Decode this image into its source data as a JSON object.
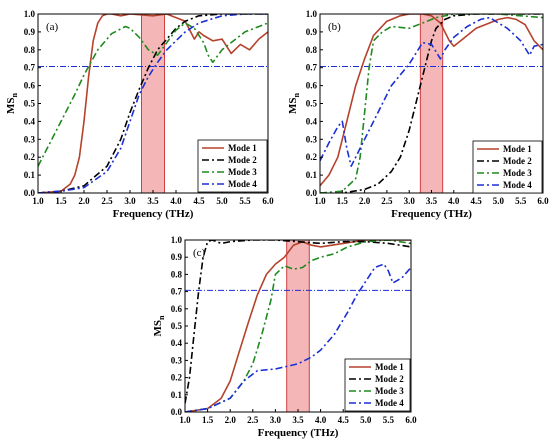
{
  "figure": {
    "panels": [
      {
        "tag": "(a)",
        "xlabel": "Frequency (THz)",
        "ylabel_main": "MS",
        "ylabel_sub": "n",
        "legend": [
          "Mode 1",
          "Mode 2",
          "Mode 3",
          "Mode 4"
        ]
      },
      {
        "tag": "(b)",
        "xlabel": "Frequency (THz)",
        "ylabel_main": "MS",
        "ylabel_sub": "n",
        "legend": [
          "Mode 1",
          "Mode 2",
          "Mode 3",
          "Mode 4"
        ]
      },
      {
        "tag": "(c)",
        "xlabel": "Frequency (THz)",
        "ylabel_main": "MS",
        "ylabel_sub": "n",
        "legend": [
          "Mode 1",
          "Mode 2",
          "Mode 3",
          "Mode 4"
        ]
      }
    ]
  },
  "colors": {
    "mode1": "#b5422c",
    "mode2": "#000000",
    "mode3": "#1f8a1f",
    "mode4": "#1b2fd6",
    "band_fill": "#f4b6b6",
    "band_stroke": "#d04040",
    "threshold": "#1b2fd6"
  },
  "chart_data": [
    {
      "type": "line",
      "title": "(a)",
      "xlabel": "Frequency (THz)",
      "ylabel": "MSn",
      "xlim": [
        1.0,
        6.0
      ],
      "ylim": [
        0.0,
        1.0
      ],
      "xticks": [
        "1.0",
        "1.5",
        "2.0",
        "2.5",
        "3.0",
        "3.5",
        "4.0",
        "4.5",
        "5.0",
        "5.5",
        "6.0"
      ],
      "yticks": [
        "0.0",
        "0.1",
        "0.2",
        "0.3",
        "0.4",
        "0.5",
        "0.6",
        "0.7",
        "0.8",
        "0.9",
        "1.0"
      ],
      "band": [
        3.25,
        3.75
      ],
      "threshold": 0.707,
      "legend_position": "bottom-right",
      "series": [
        {
          "name": "Mode 1",
          "style": "solid",
          "color_key": "mode1",
          "x": [
            1.0,
            1.5,
            1.7,
            1.8,
            1.9,
            2.0,
            2.1,
            2.2,
            2.3,
            2.4,
            2.5,
            2.6,
            2.8,
            3.0,
            3.5,
            3.8,
            4.0,
            4.2,
            4.4,
            4.5,
            4.6,
            4.8,
            5.0,
            5.2,
            5.4,
            5.6,
            5.8,
            6.0
          ],
          "y": [
            0.0,
            0.01,
            0.05,
            0.1,
            0.2,
            0.4,
            0.65,
            0.85,
            0.95,
            0.99,
            1.0,
            1.0,
            0.99,
            1.0,
            0.99,
            1.0,
            0.98,
            0.96,
            0.86,
            0.9,
            0.88,
            0.85,
            0.86,
            0.78,
            0.83,
            0.8,
            0.86,
            0.9
          ]
        },
        {
          "name": "Mode 2",
          "style": "dashdot",
          "color_key": "mode2",
          "x": [
            1.0,
            1.5,
            2.0,
            2.5,
            2.8,
            3.0,
            3.2,
            3.4,
            3.6,
            3.8,
            4.0,
            4.2,
            4.5,
            5.0,
            5.5,
            6.0
          ],
          "y": [
            0.0,
            0.01,
            0.04,
            0.15,
            0.3,
            0.45,
            0.58,
            0.7,
            0.8,
            0.86,
            0.92,
            0.96,
            0.99,
            1.0,
            1.0,
            1.0
          ]
        },
        {
          "name": "Mode 3",
          "style": "dashdot",
          "color_key": "mode3",
          "x": [
            1.0,
            1.2,
            1.5,
            1.8,
            2.0,
            2.3,
            2.6,
            2.9,
            3.0,
            3.2,
            3.4,
            3.6,
            3.8,
            4.0,
            4.2,
            4.4,
            4.6,
            4.7,
            4.8,
            5.0,
            5.5,
            6.0
          ],
          "y": [
            0.15,
            0.25,
            0.4,
            0.55,
            0.66,
            0.8,
            0.89,
            0.93,
            0.92,
            0.87,
            0.8,
            0.77,
            0.84,
            0.91,
            0.95,
            0.92,
            0.84,
            0.77,
            0.73,
            0.8,
            0.9,
            0.95
          ]
        },
        {
          "name": "Mode 4",
          "style": "dashdot",
          "color_key": "mode4",
          "x": [
            1.0,
            1.5,
            2.0,
            2.5,
            2.8,
            3.0,
            3.2,
            3.4,
            3.6,
            3.8,
            4.0,
            4.2,
            4.5,
            5.0,
            5.5,
            6.0
          ],
          "y": [
            0.0,
            0.01,
            0.03,
            0.12,
            0.25,
            0.4,
            0.55,
            0.65,
            0.73,
            0.8,
            0.85,
            0.9,
            0.95,
            0.99,
            1.0,
            1.0
          ]
        }
      ]
    },
    {
      "type": "line",
      "title": "(b)",
      "xlabel": "Frequency (THz)",
      "ylabel": "MSn",
      "xlim": [
        1.0,
        6.0
      ],
      "ylim": [
        0.0,
        1.0
      ],
      "xticks": [
        "1.0",
        "1.5",
        "2.0",
        "2.5",
        "3.0",
        "3.5",
        "4.0",
        "4.5",
        "5.0",
        "5.5",
        "6.0"
      ],
      "yticks": [
        "0.0",
        "0.1",
        "0.2",
        "0.3",
        "0.4",
        "0.5",
        "0.6",
        "0.7",
        "0.8",
        "0.9",
        "1.0"
      ],
      "band": [
        3.25,
        3.75
      ],
      "threshold": 0.707,
      "legend_position": "bottom-right",
      "series": [
        {
          "name": "Mode 1",
          "style": "solid",
          "color_key": "mode1",
          "x": [
            1.0,
            1.2,
            1.4,
            1.6,
            1.8,
            2.0,
            2.2,
            2.5,
            2.8,
            3.0,
            3.3,
            3.5,
            3.7,
            3.9,
            4.0,
            4.2,
            4.5,
            4.8,
            5.0,
            5.2,
            5.4,
            5.6,
            5.8,
            6.0
          ],
          "y": [
            0.04,
            0.1,
            0.2,
            0.4,
            0.6,
            0.75,
            0.88,
            0.96,
            0.99,
            1.0,
            1.0,
            0.99,
            0.95,
            0.85,
            0.82,
            0.86,
            0.92,
            0.95,
            0.97,
            0.98,
            0.97,
            0.94,
            0.85,
            0.8
          ]
        },
        {
          "name": "Mode 2",
          "style": "dashdot",
          "color_key": "mode2",
          "x": [
            1.0,
            1.5,
            2.0,
            2.3,
            2.6,
            2.8,
            3.0,
            3.2,
            3.4,
            3.5,
            3.6,
            3.8,
            4.0,
            4.5,
            5.0,
            5.5,
            6.0
          ],
          "y": [
            0.0,
            0.0,
            0.02,
            0.05,
            0.12,
            0.2,
            0.35,
            0.55,
            0.75,
            0.85,
            0.92,
            0.97,
            0.99,
            1.0,
            1.0,
            1.0,
            1.0
          ]
        },
        {
          "name": "Mode 3",
          "style": "dashdot",
          "color_key": "mode3",
          "x": [
            1.0,
            1.5,
            1.8,
            1.9,
            2.0,
            2.1,
            2.2,
            2.4,
            2.6,
            3.0,
            3.3,
            3.6,
            3.8,
            4.0,
            4.5,
            5.0,
            5.5,
            6.0
          ],
          "y": [
            0.0,
            0.01,
            0.08,
            0.2,
            0.45,
            0.7,
            0.85,
            0.9,
            0.93,
            0.92,
            0.95,
            0.98,
            0.99,
            1.0,
            1.0,
            1.0,
            0.99,
            0.98
          ]
        },
        {
          "name": "Mode 4",
          "style": "dashdot",
          "color_key": "mode4",
          "x": [
            1.0,
            1.2,
            1.4,
            1.5,
            1.6,
            1.7,
            1.8,
            2.0,
            2.3,
            2.6,
            3.0,
            3.3,
            3.5,
            3.7,
            3.8,
            4.0,
            4.3,
            4.6,
            4.8,
            5.0,
            5.2,
            5.5,
            5.7,
            5.8,
            6.0
          ],
          "y": [
            0.18,
            0.28,
            0.37,
            0.4,
            0.25,
            0.15,
            0.2,
            0.3,
            0.45,
            0.6,
            0.72,
            0.84,
            0.83,
            0.75,
            0.8,
            0.87,
            0.93,
            0.97,
            0.98,
            0.95,
            0.92,
            0.85,
            0.77,
            0.82,
            0.83
          ]
        }
      ]
    },
    {
      "type": "line",
      "title": "(c)",
      "xlabel": "Frequency (THz)",
      "ylabel": "MSn",
      "xlim": [
        1.0,
        6.0
      ],
      "ylim": [
        0.0,
        1.0
      ],
      "xticks": [
        "1.0",
        "1.5",
        "2.0",
        "2.5",
        "3.0",
        "3.5",
        "4.0",
        "4.5",
        "5.0",
        "5.5",
        "6.0"
      ],
      "yticks": [
        "0.0",
        "0.1",
        "0.2",
        "0.3",
        "0.4",
        "0.5",
        "0.6",
        "0.7",
        "0.8",
        "0.9",
        "1.0"
      ],
      "band": [
        3.25,
        3.75
      ],
      "threshold": 0.707,
      "legend_position": "bottom-right",
      "series": [
        {
          "name": "Mode 1",
          "style": "solid",
          "color_key": "mode1",
          "x": [
            1.0,
            1.5,
            1.8,
            2.0,
            2.2,
            2.4,
            2.6,
            2.8,
            3.0,
            3.2,
            3.4,
            3.6,
            3.8,
            4.0,
            4.5,
            5.0,
            5.5,
            6.0
          ],
          "y": [
            0.0,
            0.02,
            0.08,
            0.18,
            0.35,
            0.52,
            0.68,
            0.8,
            0.86,
            0.9,
            0.97,
            0.99,
            0.97,
            0.96,
            0.98,
            1.0,
            1.0,
            1.0
          ]
        },
        {
          "name": "Mode 2",
          "style": "dashdot",
          "color_key": "mode2",
          "x": [
            1.0,
            1.1,
            1.2,
            1.3,
            1.4,
            1.5,
            1.6,
            1.8,
            2.0,
            2.5,
            3.0,
            3.5,
            4.0,
            4.5,
            5.0,
            5.5,
            6.0
          ],
          "y": [
            0.05,
            0.2,
            0.45,
            0.7,
            0.9,
            0.99,
            1.0,
            0.98,
            0.99,
            1.0,
            1.0,
            0.99,
            0.98,
            0.99,
            0.99,
            0.98,
            0.96
          ]
        },
        {
          "name": "Mode 3",
          "style": "dashdot",
          "color_key": "mode3",
          "x": [
            1.0,
            1.5,
            2.0,
            2.3,
            2.5,
            2.7,
            2.9,
            3.0,
            3.2,
            3.4,
            3.6,
            3.8,
            4.0,
            4.3,
            4.6,
            5.0,
            5.5,
            6.0
          ],
          "y": [
            0.0,
            0.02,
            0.08,
            0.18,
            0.28,
            0.45,
            0.65,
            0.8,
            0.85,
            0.83,
            0.84,
            0.88,
            0.9,
            0.92,
            0.96,
            0.99,
            1.0,
            0.98
          ]
        },
        {
          "name": "Mode 4",
          "style": "dashdot",
          "color_key": "mode4",
          "x": [
            1.0,
            1.5,
            2.0,
            2.3,
            2.6,
            3.0,
            3.5,
            3.8,
            4.0,
            4.3,
            4.6,
            4.8,
            5.0,
            5.2,
            5.4,
            5.5,
            5.6,
            5.8,
            6.0
          ],
          "y": [
            0.0,
            0.02,
            0.08,
            0.18,
            0.24,
            0.25,
            0.28,
            0.32,
            0.36,
            0.45,
            0.58,
            0.68,
            0.76,
            0.84,
            0.86,
            0.82,
            0.75,
            0.78,
            0.84
          ]
        }
      ]
    }
  ]
}
